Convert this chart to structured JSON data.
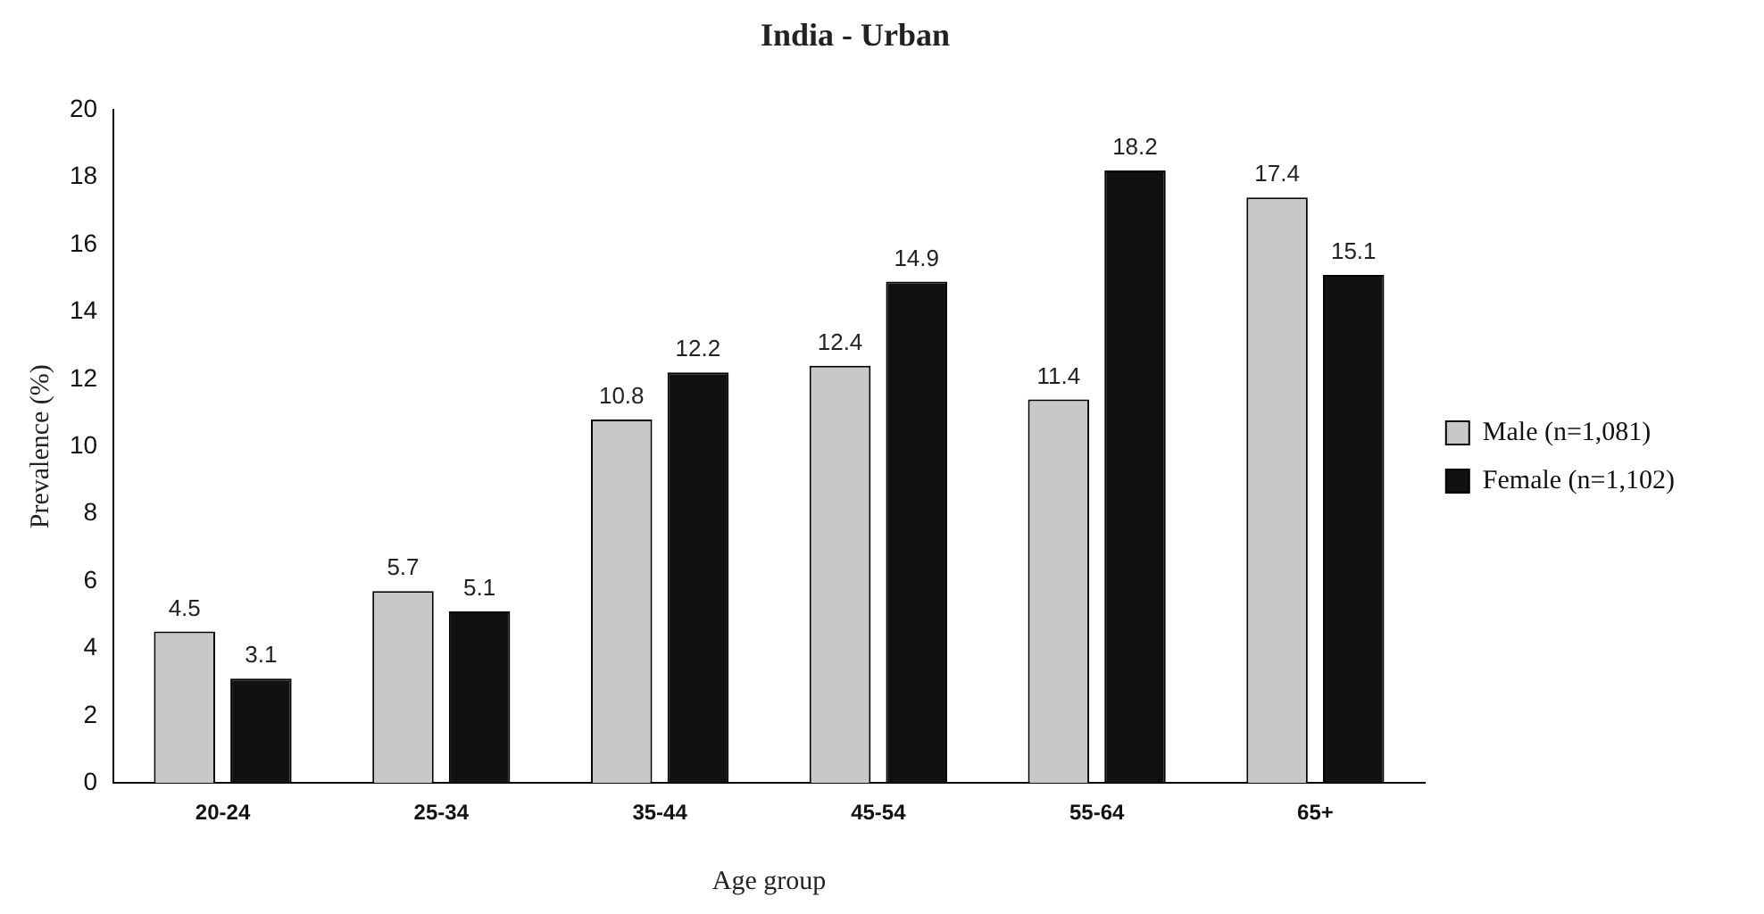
{
  "chart_data": {
    "type": "bar",
    "title": "India - Urban",
    "xlabel": "Age group",
    "ylabel": "Prevalence (%)",
    "categories": [
      "20-24",
      "25-34",
      "35-44",
      "45-54",
      "55-64",
      "65+"
    ],
    "series": [
      {
        "name": "Male (n=1,081)",
        "color": "#c8c8c8",
        "values": [
          4.5,
          5.7,
          10.8,
          12.4,
          11.4,
          17.4
        ]
      },
      {
        "name": "Female (n=1,102)",
        "color": "#111111",
        "values": [
          3.1,
          5.1,
          12.2,
          14.9,
          18.2,
          15.1
        ]
      }
    ],
    "ylim": [
      0,
      20
    ],
    "yticks": [
      0,
      2,
      4,
      6,
      8,
      10,
      12,
      14,
      16,
      18,
      20
    ],
    "data_labels": true,
    "legend": "right",
    "grid": false
  }
}
